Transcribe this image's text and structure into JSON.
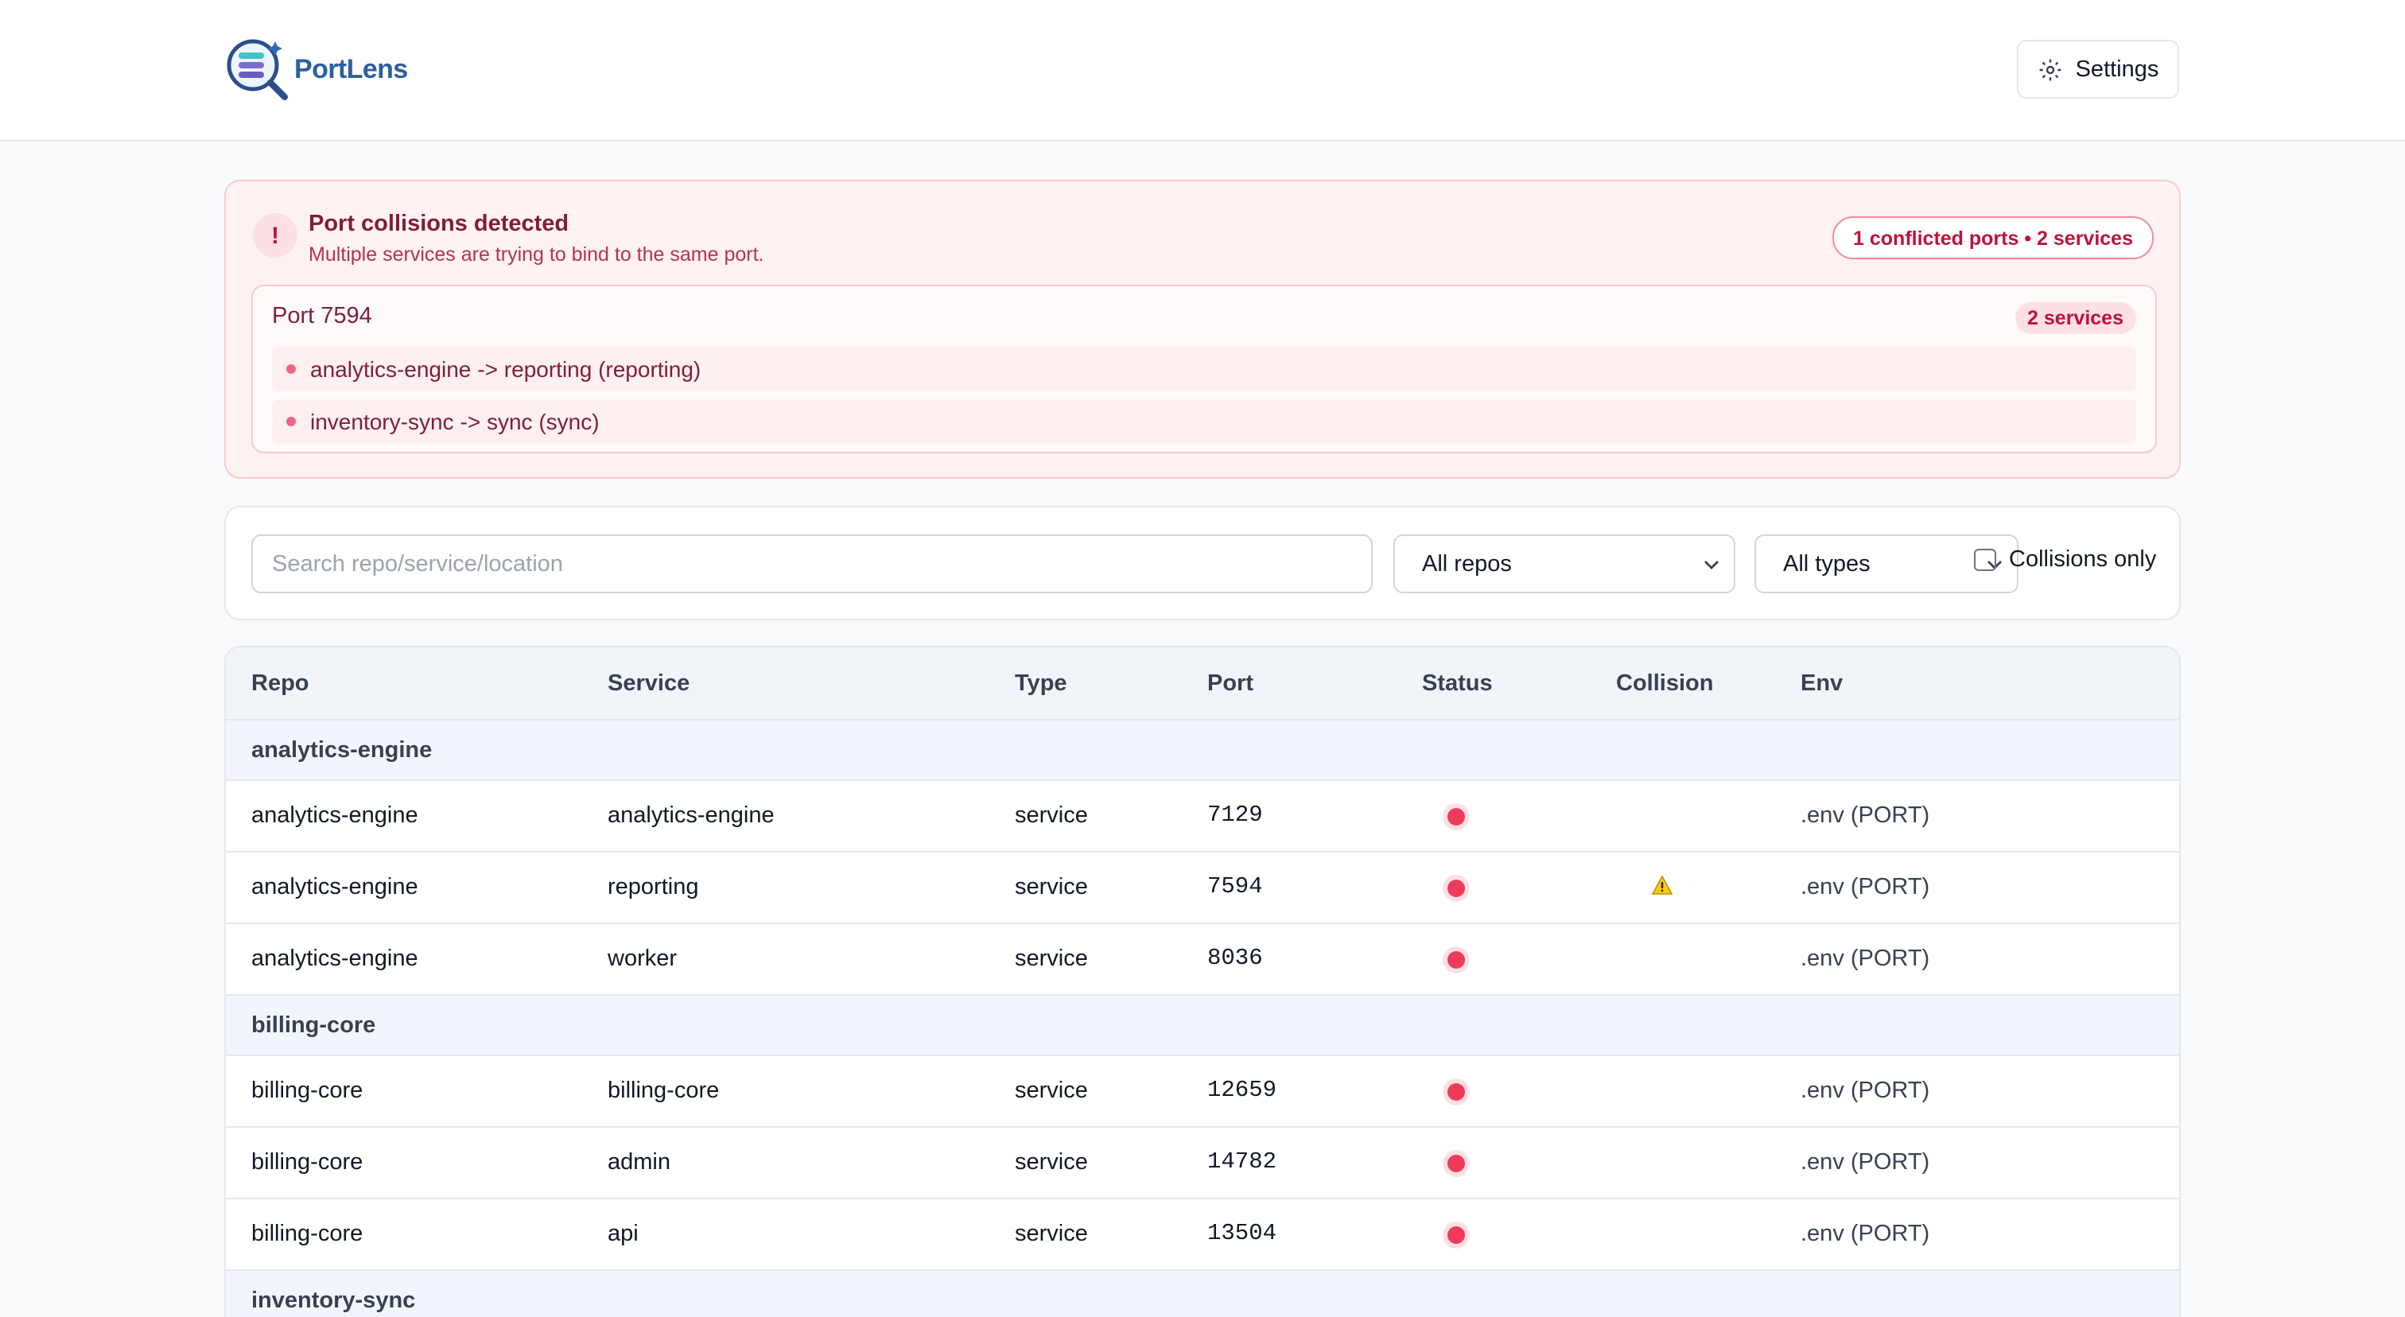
{
  "header": {
    "logo_text": "PortLens",
    "settings": "Settings"
  },
  "alert": {
    "title": "Port collisions detected",
    "subtitle": "Multiple services are trying to bind to the same port.",
    "badge": "1 conflicted ports • 2 services",
    "groups": [
      {
        "port_label": "Port 7594",
        "count": "2 services",
        "items": [
          {
            "repo": "analytics-engine",
            "target": "-> reporting (reporting)"
          },
          {
            "repo": "inventory-sync",
            "target": "-> sync (sync)"
          }
        ]
      }
    ]
  },
  "filters": {
    "search_placeholder": "Search repo/service/location",
    "repo_select": "All repos",
    "type_select": "All types",
    "collisions_only": "Collisions only"
  },
  "table": {
    "columns": [
      "Repo",
      "Service",
      "Type",
      "Port",
      "Status",
      "Collision",
      "Env"
    ],
    "groups": [
      {
        "name": "analytics-engine",
        "rows": [
          {
            "repo": "analytics-engine",
            "service": "analytics-engine",
            "type": "service",
            "port": "7129",
            "collision": false,
            "env": ".env (PORT)"
          },
          {
            "repo": "analytics-engine",
            "service": "reporting",
            "type": "service",
            "port": "7594",
            "collision": true,
            "env": ".env (PORT)"
          },
          {
            "repo": "analytics-engine",
            "service": "worker",
            "type": "service",
            "port": "8036",
            "collision": false,
            "env": ".env (PORT)"
          }
        ]
      },
      {
        "name": "billing-core",
        "rows": [
          {
            "repo": "billing-core",
            "service": "billing-core",
            "type": "service",
            "port": "12659",
            "collision": false,
            "env": ".env (PORT)"
          },
          {
            "repo": "billing-core",
            "service": "admin",
            "type": "service",
            "port": "14782",
            "collision": false,
            "env": ".env (PORT)"
          },
          {
            "repo": "billing-core",
            "service": "api",
            "type": "service",
            "port": "13504",
            "collision": false,
            "env": ".env (PORT)"
          }
        ]
      },
      {
        "name": "inventory-sync",
        "rows": []
      }
    ]
  }
}
